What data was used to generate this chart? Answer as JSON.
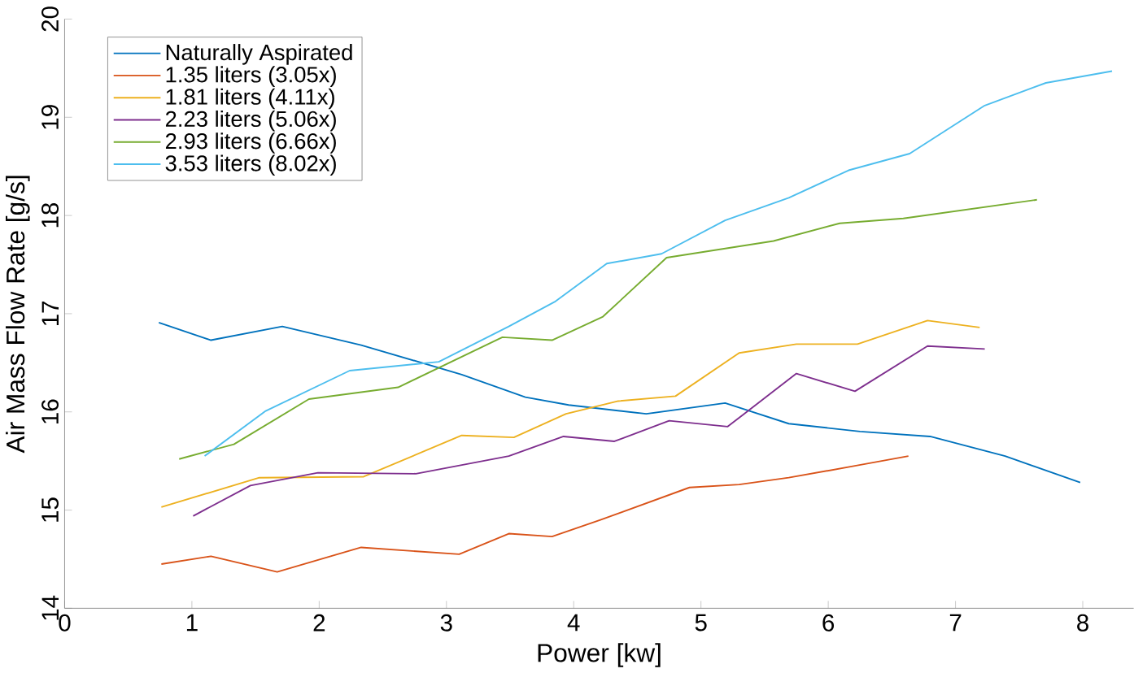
{
  "chart_data": {
    "type": "line",
    "xlabel": "Power [kw]",
    "ylabel": "Air Mass Flow Rate [g/s]",
    "xlim": [
      0,
      8.4
    ],
    "ylim": [
      14,
      20
    ],
    "xticks": [
      0,
      1,
      2,
      3,
      4,
      5,
      6,
      7,
      8
    ],
    "yticks": [
      14,
      15,
      16,
      17,
      18,
      19,
      20
    ],
    "grid": false,
    "legend": "top left",
    "marker": "none",
    "line_style": "solid",
    "series": [
      {
        "name": "Naturally Aspirated",
        "color": "#0072bd",
        "x": [
          0.74,
          1.15,
          1.71,
          2.33,
          3.12,
          3.62,
          3.96,
          4.57,
          5.19,
          5.69,
          6.25,
          6.8,
          7.39,
          7.98
        ],
        "values": [
          16.91,
          16.73,
          16.87,
          16.68,
          16.38,
          16.15,
          16.07,
          15.98,
          16.09,
          15.88,
          15.8,
          15.75,
          15.55,
          15.28
        ]
      },
      {
        "name": "1.35 liters (3.05x)",
        "color": "#d95319",
        "x": [
          0.76,
          1.15,
          1.67,
          2.33,
          3.1,
          3.49,
          3.83,
          4.21,
          4.91,
          5.3,
          5.69,
          6.21,
          6.63
        ],
        "values": [
          14.45,
          14.53,
          14.37,
          14.62,
          14.55,
          14.76,
          14.73,
          14.9,
          15.23,
          15.26,
          15.33,
          15.45,
          15.55
        ]
      },
      {
        "name": "1.81 liters (4.11x)",
        "color": "#edb120",
        "x": [
          0.76,
          1.53,
          2.35,
          3.12,
          3.53,
          3.94,
          4.35,
          4.8,
          5.3,
          5.75,
          6.23,
          6.78,
          7.19
        ],
        "values": [
          15.03,
          15.33,
          15.34,
          15.76,
          15.74,
          15.98,
          16.11,
          16.16,
          16.6,
          16.69,
          16.69,
          16.93,
          16.86
        ]
      },
      {
        "name": "2.23 liters (5.06x)",
        "color": "#7e2f8e",
        "x": [
          1.01,
          1.46,
          1.99,
          2.76,
          3.49,
          3.92,
          4.32,
          4.75,
          5.21,
          5.75,
          6.21,
          6.78,
          7.23
        ],
        "values": [
          14.94,
          15.25,
          15.38,
          15.37,
          15.55,
          15.75,
          15.7,
          15.91,
          15.85,
          16.39,
          16.21,
          16.67,
          16.64
        ]
      },
      {
        "name": "2.93 liters (6.66x)",
        "color": "#77ac30",
        "x": [
          0.9,
          1.33,
          1.92,
          2.62,
          3.44,
          3.83,
          4.23,
          4.73,
          5.57,
          6.09,
          6.59,
          7.64
        ],
        "values": [
          15.52,
          15.67,
          16.13,
          16.25,
          16.76,
          16.73,
          16.97,
          17.57,
          17.74,
          17.92,
          17.97,
          18.16
        ]
      },
      {
        "name": "3.53 liters (8.02x)",
        "color": "#4dbeee",
        "x": [
          1.1,
          1.58,
          2.24,
          2.94,
          3.49,
          3.85,
          4.26,
          4.69,
          5.19,
          5.69,
          6.16,
          6.64,
          7.23,
          7.71,
          8.23
        ],
        "values": [
          15.55,
          16.01,
          16.42,
          16.51,
          16.87,
          17.12,
          17.51,
          17.61,
          17.95,
          18.18,
          18.46,
          18.63,
          19.12,
          19.35,
          19.47
        ]
      }
    ]
  }
}
